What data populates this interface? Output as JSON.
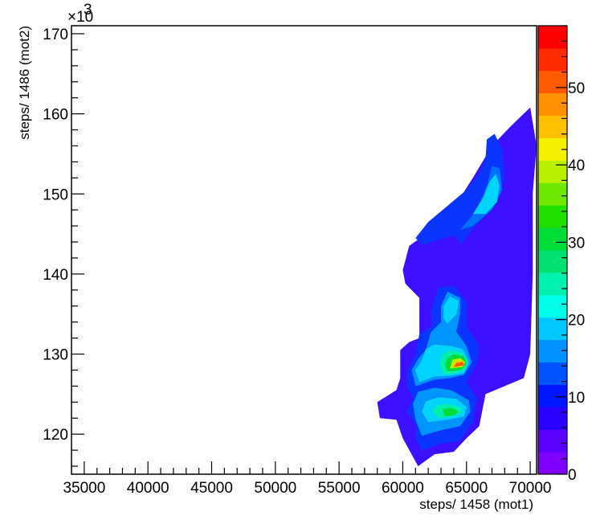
{
  "chart_data": {
    "type": "contour",
    "title": "",
    "xlabel": "steps/ 1458 (mot1)",
    "ylabel": "steps/ 1486 (mot2)",
    "y_exponent_label": "×10",
    "y_exponent_power": "3",
    "xlim": [
      34000,
      70500
    ],
    "ylim": [
      115000,
      171000
    ],
    "x_ticks": [
      35000,
      40000,
      45000,
      50000,
      55000,
      60000,
      65000,
      70000
    ],
    "x_tick_labels": [
      "35000",
      "40000",
      "45000",
      "50000",
      "55000",
      "60000",
      "65000",
      "70000"
    ],
    "y_ticks": [
      120000,
      130000,
      140000,
      150000,
      160000,
      170000
    ],
    "y_tick_labels": [
      "120",
      "130",
      "140",
      "150",
      "160",
      "170"
    ],
    "colorbar": {
      "range": [
        0,
        58
      ],
      "ticks": [
        0,
        10,
        20,
        30,
        40,
        50
      ],
      "tick_labels": [
        "0",
        "10",
        "20",
        "30",
        "40",
        "50"
      ],
      "colors": [
        "#7f00ff",
        "#5a00ff",
        "#2a00ff",
        "#0016ff",
        "#0054ff",
        "#0090ff",
        "#00c8ff",
        "#00ffe6",
        "#00f0b0",
        "#00e070",
        "#00dc38",
        "#20e000",
        "#70e800",
        "#b8f000",
        "#f5f000",
        "#ffc000",
        "#ff9000",
        "#ff5a00",
        "#ff2a00",
        "#ff0000"
      ]
    },
    "contour_levels": [
      {
        "level": 1,
        "color": "#3c10ff",
        "region": [
          [
            61200,
            116000
          ],
          [
            62500,
            117500
          ],
          [
            64000,
            117800
          ],
          [
            65000,
            119500
          ],
          [
            66000,
            121000
          ],
          [
            66500,
            125000
          ],
          [
            68000,
            126000
          ],
          [
            69500,
            127000
          ],
          [
            70000,
            130000
          ],
          [
            70200,
            140000
          ],
          [
            70200,
            150000
          ],
          [
            70500,
            156000
          ],
          [
            70000,
            160800
          ],
          [
            68500,
            158500
          ],
          [
            67000,
            156000
          ],
          [
            65500,
            152000
          ],
          [
            64500,
            149500
          ],
          [
            63000,
            147500
          ],
          [
            61800,
            145000
          ],
          [
            60500,
            143500
          ],
          [
            60000,
            140500
          ],
          [
            60200,
            138800
          ],
          [
            61300,
            137000
          ],
          [
            61300,
            132000
          ],
          [
            60500,
            131500
          ],
          [
            59800,
            130500
          ],
          [
            59800,
            127000
          ],
          [
            59500,
            125500
          ],
          [
            58000,
            124000
          ],
          [
            58200,
            122000
          ],
          [
            59500,
            121800
          ],
          [
            60000,
            119500
          ]
        ]
      },
      {
        "level": 5,
        "color": "#0a35ff",
        "region": [
          [
            61500,
            118000
          ],
          [
            63000,
            118800
          ],
          [
            64500,
            119200
          ],
          [
            65500,
            121500
          ],
          [
            65800,
            124500
          ],
          [
            65000,
            126500
          ],
          [
            65800,
            128800
          ],
          [
            66000,
            131000
          ],
          [
            65000,
            133500
          ],
          [
            65000,
            136500
          ],
          [
            64000,
            138500
          ],
          [
            62800,
            138300
          ],
          [
            62200,
            135500
          ],
          [
            62300,
            133500
          ],
          [
            61300,
            132500
          ],
          [
            61000,
            130000
          ],
          [
            60400,
            128000
          ],
          [
            60300,
            126000
          ],
          [
            60800,
            124500
          ],
          [
            60300,
            122800
          ],
          [
            61000,
            121200
          ],
          [
            61000,
            119500
          ]
        ]
      },
      {
        "level": 5,
        "color": "#0a35ff",
        "region": [
          [
            61000,
            144500
          ],
          [
            62000,
            146500
          ],
          [
            63500,
            148500
          ],
          [
            65000,
            150500
          ],
          [
            66000,
            152500
          ],
          [
            66500,
            154500
          ],
          [
            66600,
            156800
          ],
          [
            67200,
            157500
          ],
          [
            67800,
            155500
          ],
          [
            68000,
            152000
          ],
          [
            67200,
            148500
          ],
          [
            65700,
            146000
          ],
          [
            64600,
            143800
          ],
          [
            64000,
            144800
          ],
          [
            62800,
            144300
          ],
          [
            61600,
            143600
          ]
        ]
      },
      {
        "level": 8,
        "color": "#0070ff",
        "region": [
          [
            64500,
            145500
          ],
          [
            65800,
            148000
          ],
          [
            66600,
            151000
          ],
          [
            67000,
            153500
          ],
          [
            67600,
            153200
          ],
          [
            67800,
            150500
          ],
          [
            67000,
            148000
          ],
          [
            65500,
            146000
          ]
        ]
      },
      {
        "level": 9,
        "color": "#0094ff",
        "region": [
          [
            61500,
            119800
          ],
          [
            63000,
            120500
          ],
          [
            64500,
            121000
          ],
          [
            65300,
            122800
          ],
          [
            65200,
            124200
          ],
          [
            63800,
            125500
          ],
          [
            62500,
            125800
          ],
          [
            61200,
            125300
          ],
          [
            60800,
            123800
          ],
          [
            61000,
            121800
          ]
        ]
      },
      {
        "level": 9,
        "color": "#0094ff",
        "region": [
          [
            61000,
            126000
          ],
          [
            62500,
            126800
          ],
          [
            63800,
            127000
          ],
          [
            64800,
            127400
          ],
          [
            65400,
            129000
          ],
          [
            65000,
            131000
          ],
          [
            64200,
            132800
          ],
          [
            64500,
            135000
          ],
          [
            64500,
            137000
          ],
          [
            63500,
            137800
          ],
          [
            63000,
            136000
          ],
          [
            63000,
            134000
          ],
          [
            62200,
            132700
          ],
          [
            61800,
            130500
          ],
          [
            61200,
            129400
          ],
          [
            60700,
            128000
          ]
        ]
      },
      {
        "level": 13,
        "color": "#00d4ff",
        "region": [
          [
            62000,
            121500
          ],
          [
            63500,
            121800
          ],
          [
            64800,
            122200
          ],
          [
            65000,
            123400
          ],
          [
            64200,
            124400
          ],
          [
            62800,
            124600
          ],
          [
            61800,
            124100
          ],
          [
            61500,
            122800
          ]
        ]
      },
      {
        "level": 13,
        "color": "#00d4ff",
        "region": [
          [
            61300,
            126500
          ],
          [
            62500,
            127200
          ],
          [
            63800,
            127300
          ],
          [
            64800,
            127600
          ],
          [
            65200,
            129000
          ],
          [
            64700,
            130600
          ],
          [
            63800,
            131000
          ],
          [
            62500,
            131200
          ],
          [
            61800,
            130600
          ],
          [
            61500,
            129200
          ],
          [
            61000,
            128000
          ]
        ]
      },
      {
        "level": 13,
        "color": "#00d4ff",
        "region": [
          [
            63500,
            133800
          ],
          [
            64200,
            135000
          ],
          [
            64400,
            136600
          ],
          [
            63700,
            137200
          ],
          [
            63200,
            136000
          ],
          [
            63200,
            134500
          ]
        ]
      },
      {
        "level": 13,
        "color": "#00d4ff",
        "region": [
          [
            65500,
            147500
          ],
          [
            66300,
            149500
          ],
          [
            66800,
            151500
          ],
          [
            67300,
            152500
          ],
          [
            67600,
            151000
          ],
          [
            67400,
            149000
          ],
          [
            66500,
            147500
          ]
        ]
      },
      {
        "level": 18,
        "color": "#00f0b0",
        "region": [
          [
            62800,
            122000
          ],
          [
            63800,
            122200
          ],
          [
            64600,
            122600
          ],
          [
            64600,
            123300
          ],
          [
            63600,
            123800
          ],
          [
            62700,
            123600
          ],
          [
            62300,
            122900
          ]
        ]
      },
      {
        "level": 18,
        "color": "#00f0b0",
        "region": [
          [
            63200,
            127400
          ],
          [
            64200,
            127600
          ],
          [
            65000,
            128200
          ],
          [
            65100,
            129200
          ],
          [
            64600,
            130200
          ],
          [
            63600,
            130500
          ],
          [
            63000,
            129800
          ],
          [
            62900,
            128600
          ]
        ]
      },
      {
        "level": 22,
        "color": "#00dc38",
        "region": [
          [
            63300,
            122200
          ],
          [
            64100,
            122400
          ],
          [
            64400,
            122800
          ],
          [
            63800,
            123300
          ],
          [
            63100,
            123100
          ]
        ]
      },
      {
        "level": 22,
        "color": "#00dc38",
        "region": [
          [
            63500,
            127800
          ],
          [
            64600,
            128000
          ],
          [
            65000,
            128800
          ],
          [
            64800,
            129700
          ],
          [
            64000,
            130000
          ],
          [
            63500,
            129500
          ],
          [
            63300,
            128700
          ]
        ]
      },
      {
        "level": 30,
        "color": "#b8f000",
        "region": [
          [
            63700,
            128200
          ],
          [
            64700,
            128400
          ],
          [
            64900,
            129000
          ],
          [
            64500,
            129500
          ],
          [
            63900,
            129300
          ]
        ]
      },
      {
        "level": 38,
        "color": "#ffc000",
        "region": [
          [
            63900,
            128300
          ],
          [
            64800,
            128500
          ],
          [
            64800,
            129100
          ],
          [
            64200,
            129100
          ]
        ]
      },
      {
        "level": 46,
        "color": "#ff5a00",
        "region": [
          [
            64000,
            128400
          ],
          [
            64800,
            128600
          ],
          [
            64700,
            129000
          ],
          [
            64200,
            128900
          ]
        ]
      }
    ]
  }
}
